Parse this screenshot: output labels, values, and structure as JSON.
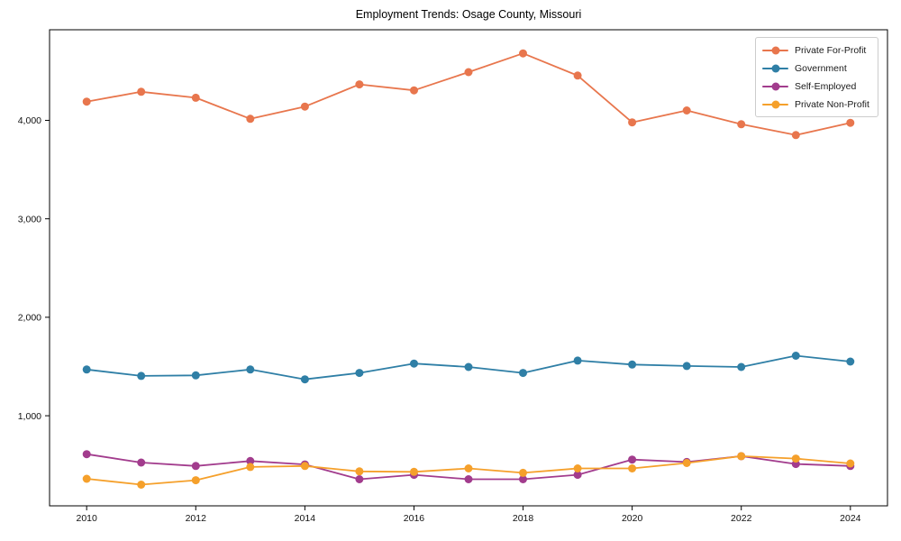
{
  "chart_data": {
    "type": "line",
    "title": "Employment Trends: Osage County, Missouri",
    "xlabel": "",
    "ylabel": "",
    "grid": false,
    "legend_position": "upper right",
    "x": [
      2010,
      2011,
      2012,
      2013,
      2014,
      2015,
      2016,
      2017,
      2018,
      2019,
      2020,
      2021,
      2022,
      2023,
      2024
    ],
    "x_tick_labels": [
      "2010",
      "2012",
      "2014",
      "2016",
      "2018",
      "2020",
      "2022",
      "2024"
    ],
    "y_ticks": [
      {
        "value": 1000,
        "label": "1,000"
      },
      {
        "value": 2000,
        "label": "2,000"
      },
      {
        "value": 3000,
        "label": "3,000"
      },
      {
        "value": 4000,
        "label": "4,000"
      }
    ],
    "xlim": [
      2009.32,
      2024.68
    ],
    "ylim": [
      85,
      4920
    ],
    "series": [
      {
        "name": "Private For-Profit",
        "color": "#E8764D",
        "values": [
          4190,
          4290,
          4230,
          4015,
          4140,
          4365,
          4305,
          4490,
          4680,
          4455,
          3980,
          4100,
          3960,
          3850,
          3975
        ]
      },
      {
        "name": "Government",
        "color": "#2F7FA6",
        "values": [
          1470,
          1405,
          1410,
          1470,
          1370,
          1435,
          1530,
          1495,
          1435,
          1560,
          1520,
          1505,
          1495,
          1610,
          1550
        ]
      },
      {
        "name": "Self-Employed",
        "color": "#A23C8D",
        "values": [
          610,
          525,
          490,
          540,
          505,
          355,
          400,
          355,
          355,
          400,
          555,
          530,
          590,
          510,
          490
        ]
      },
      {
        "name": "Private Non-Profit",
        "color": "#F5A02B",
        "values": [
          360,
          300,
          345,
          480,
          490,
          435,
          430,
          465,
          420,
          465,
          465,
          520,
          590,
          565,
          515
        ]
      }
    ]
  }
}
